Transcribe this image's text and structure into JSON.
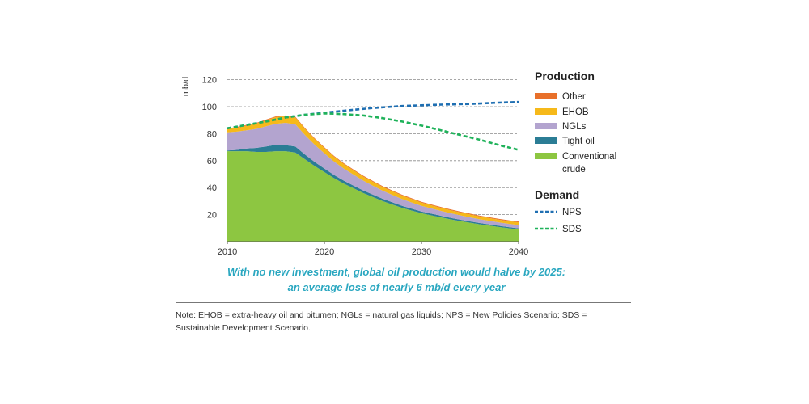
{
  "chart_data": {
    "type": "area",
    "ylabel": "mb/d",
    "xlim": [
      2010,
      2040
    ],
    "ylim": [
      0,
      125
    ],
    "x_ticks": [
      2010,
      2020,
      2030,
      2040
    ],
    "y_ticks": [
      20,
      40,
      60,
      80,
      100,
      120
    ],
    "grid": "horizontal dashed",
    "x": [
      2010,
      2011,
      2012,
      2013,
      2014,
      2015,
      2016,
      2017,
      2018,
      2019,
      2020,
      2021,
      2022,
      2023,
      2024,
      2025,
      2026,
      2027,
      2028,
      2029,
      2030,
      2031,
      2032,
      2033,
      2034,
      2035,
      2036,
      2037,
      2038,
      2039,
      2040
    ],
    "series": [
      {
        "name": "Conventional crude",
        "color": "#8dc641",
        "values": [
          67,
          67,
          67,
          66.5,
          66.5,
          67,
          67,
          66,
          61,
          56,
          51.5,
          47,
          43,
          39.5,
          36,
          33,
          30,
          27.5,
          25,
          23,
          21,
          19.5,
          18,
          16.5,
          15.2,
          14,
          12.8,
          11.8,
          10.8,
          9.9,
          9
        ]
      },
      {
        "name": "Tight oil",
        "color": "#2b7d95",
        "values": [
          0.5,
          1,
          2,
          3,
          4,
          4.8,
          4.5,
          4.5,
          3.5,
          3,
          2.6,
          2.3,
          2.1,
          2,
          1.9,
          1.8,
          1.7,
          1.6,
          1.5,
          1.4,
          1.3,
          1.2,
          1.15,
          1.1,
          1.05,
          1,
          0.95,
          0.9,
          0.85,
          0.8,
          0.8
        ]
      },
      {
        "name": "NGLs",
        "color": "#b3a4cf",
        "values": [
          13.5,
          13.5,
          13.5,
          14,
          15,
          15.5,
          16.5,
          16.5,
          14.5,
          12.8,
          11.3,
          10,
          9,
          8.1,
          7.3,
          6.6,
          6,
          5.5,
          5,
          4.6,
          4.2,
          3.9,
          3.6,
          3.4,
          3.2,
          3,
          2.8,
          2.7,
          2.6,
          2.5,
          2.5
        ]
      },
      {
        "name": "EHOB",
        "color": "#f6b91a",
        "values": [
          2.3,
          3,
          3.5,
          4,
          4.5,
          5,
          5,
          5,
          4.5,
          4.2,
          3.9,
          3.6,
          3.4,
          3.2,
          3,
          2.9,
          2.8,
          2.7,
          2.6,
          2.5,
          2.4,
          2.35,
          2.3,
          2.25,
          2.2,
          2.15,
          2.1,
          2.05,
          2,
          2,
          2
        ]
      },
      {
        "name": "Other",
        "color": "#e8702a",
        "values": [
          0.5,
          0.5,
          0.5,
          0.5,
          0.5,
          0.5,
          0.5,
          0.6,
          0.6,
          0.6,
          0.6,
          0.6,
          0.6,
          0.6,
          0.6,
          0.6,
          0.6,
          0.6,
          0.6,
          0.6,
          0.6,
          0.6,
          0.6,
          0.6,
          0.6,
          0.6,
          0.6,
          0.6,
          0.6,
          0.6,
          0.6
        ]
      }
    ],
    "demand": [
      {
        "name": "NPS",
        "color": "#1f6fb2",
        "x": [
          2010,
          2012,
          2014,
          2016,
          2018,
          2020,
          2022,
          2025,
          2028,
          2030,
          2032,
          2035,
          2038,
          2040
        ],
        "values": [
          84,
          86.5,
          89,
          92,
          94,
          95.5,
          97,
          99,
          100.5,
          101,
          101.5,
          102,
          103,
          103.5
        ]
      },
      {
        "name": "SDS",
        "color": "#1fb25a",
        "x": [
          2010,
          2012,
          2014,
          2016,
          2018,
          2020,
          2022,
          2024,
          2026,
          2028,
          2030,
          2032,
          2034,
          2036,
          2038,
          2040
        ],
        "values": [
          84,
          86.5,
          89,
          92,
          94,
          95,
          94.5,
          93.5,
          91.5,
          89,
          86,
          82.5,
          79,
          75.5,
          71.5,
          68
        ]
      }
    ],
    "legend": {
      "production_title": "Production",
      "demand_title": "Demand",
      "production_items": [
        {
          "label": "Other",
          "color": "#e8702a"
        },
        {
          "label": "EHOB",
          "color": "#f6b91a"
        },
        {
          "label": "NGLs",
          "color": "#b3a4cf"
        },
        {
          "label": "Tight oil",
          "color": "#2b7d95"
        },
        {
          "label": "Conventional",
          "label2": "crude",
          "color": "#8dc641"
        }
      ],
      "demand_items": [
        {
          "label": "NPS",
          "color": "#1f6fb2"
        },
        {
          "label": "SDS",
          "color": "#1fb25a"
        }
      ],
      "placement": "right"
    },
    "subtitle_line1": "With no new investment, global oil production would halve by 2025:",
    "subtitle_line2": "an average loss of nearly 6 mb/d every year"
  },
  "note": "Note: EHOB = extra-heavy oil and bitumen; NGLs = natural gas liquids; NPS = New Policies Scenario; SDS = Sustainable Development Scenario."
}
